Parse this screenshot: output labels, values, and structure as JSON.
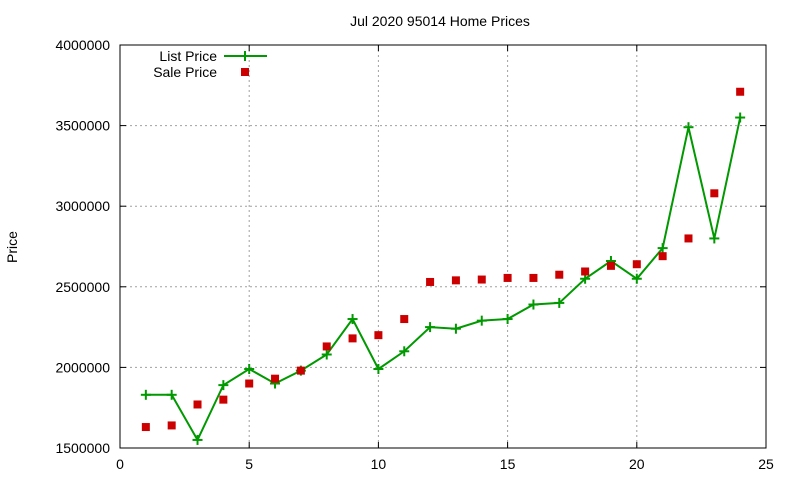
{
  "chart_data": {
    "type": "line",
    "title": "Jul 2020 95014 Home Prices",
    "xlabel": "",
    "ylabel": "Price",
    "xlim": [
      0,
      25
    ],
    "ylim": [
      1500000,
      4000000
    ],
    "xticks": [
      "0",
      "5",
      "10",
      "15",
      "20",
      "25"
    ],
    "yticks": [
      "1500000",
      "2000000",
      "2500000",
      "3000000",
      "3500000",
      "4000000"
    ],
    "grid": true,
    "legend_position": "top-left",
    "x": [
      1,
      2,
      3,
      4,
      5,
      6,
      7,
      8,
      9,
      10,
      11,
      12,
      13,
      14,
      15,
      16,
      17,
      18,
      19,
      20,
      21,
      22,
      23,
      24
    ],
    "series": [
      {
        "name": "List Price",
        "style": "line-points",
        "color": "#009900",
        "values": [
          1830000,
          1830000,
          1550000,
          1890000,
          1990000,
          1900000,
          1980000,
          2080000,
          2300000,
          1990000,
          2100000,
          2250000,
          2240000,
          2290000,
          2300000,
          2390000,
          2400000,
          2550000,
          2660000,
          2550000,
          2740000,
          3490000,
          2800000,
          3550000
        ]
      },
      {
        "name": "Sale Price",
        "style": "points",
        "color": "#cc0000",
        "values": [
          1630000,
          1640000,
          1770000,
          1800000,
          1900000,
          1930000,
          1980000,
          2130000,
          2180000,
          2200000,
          2300000,
          2530000,
          2540000,
          2545000,
          2555000,
          2555000,
          2575000,
          2595000,
          2630000,
          2640000,
          2690000,
          2800000,
          3080000,
          3710000
        ]
      }
    ]
  }
}
